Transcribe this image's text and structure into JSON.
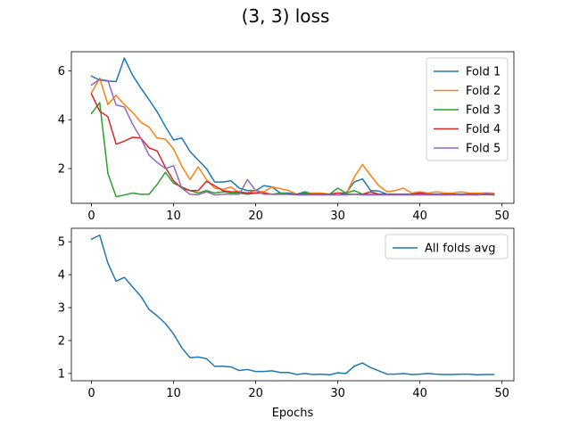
{
  "figure": {
    "title": "(3, 3) loss"
  },
  "chart_data": [
    {
      "type": "line",
      "xlim": [
        -2.45,
        51.45
      ],
      "ylim": [
        0.58,
        6.78
      ],
      "xticks": [
        0,
        10,
        20,
        30,
        40,
        50
      ],
      "yticks": [
        2,
        4,
        6
      ],
      "xlabel": "",
      "ylabel": "",
      "grid": false,
      "legend": "top-right",
      "series": [
        {
          "name": "Fold 1",
          "color": "#1f77b4",
          "x": [
            0,
            1,
            2,
            3,
            4,
            5,
            6,
            7,
            8,
            9,
            10,
            11,
            12,
            13,
            14,
            15,
            16,
            17,
            18,
            19,
            20,
            21,
            22,
            23,
            24,
            25,
            26,
            27,
            28,
            29,
            30,
            31,
            32,
            33,
            34,
            35,
            36,
            37,
            38,
            39,
            40,
            41,
            42,
            43,
            44,
            45,
            46,
            47,
            48,
            49
          ],
          "y": [
            5.78,
            5.62,
            5.58,
            5.56,
            6.52,
            5.82,
            5.3,
            4.82,
            4.32,
            3.72,
            3.17,
            3.25,
            2.7,
            2.35,
            2.0,
            1.45,
            1.45,
            1.5,
            1.2,
            1.1,
            1.1,
            1.3,
            1.25,
            1.0,
            1.0,
            0.95,
            1.05,
            0.95,
            0.95,
            0.95,
            1.0,
            1.0,
            1.45,
            1.58,
            1.1,
            1.08,
            0.95,
            0.95,
            0.95,
            0.95,
            0.95,
            0.95,
            0.95,
            0.92,
            0.95,
            0.92,
            0.95,
            0.92,
            0.95,
            0.92
          ]
        },
        {
          "name": "Fold 2",
          "color": "#ff7f0e",
          "x": [
            0,
            1,
            2,
            3,
            4,
            5,
            6,
            7,
            8,
            9,
            10,
            11,
            12,
            13,
            14,
            15,
            16,
            17,
            18,
            19,
            20,
            21,
            22,
            23,
            24,
            25,
            26,
            27,
            28,
            29,
            30,
            31,
            32,
            33,
            34,
            35,
            36,
            37,
            38,
            39,
            40,
            41,
            42,
            43,
            44,
            45,
            46,
            47,
            48,
            49
          ],
          "y": [
            5.1,
            5.7,
            4.62,
            5.0,
            4.62,
            4.3,
            3.9,
            3.7,
            3.25,
            3.2,
            2.8,
            2.1,
            1.55,
            2.07,
            1.55,
            1.2,
            1.15,
            1.25,
            1.0,
            1.0,
            1.1,
            1.05,
            1.25,
            1.18,
            1.1,
            0.95,
            1.0,
            1.0,
            1.0,
            0.95,
            1.0,
            0.95,
            1.65,
            2.17,
            1.72,
            1.3,
            1.05,
            1.1,
            1.2,
            1.0,
            1.05,
            1.0,
            1.05,
            1.0,
            1.0,
            1.05,
            1.0,
            1.0,
            1.0,
            1.0
          ]
        },
        {
          "name": "Fold 3",
          "color": "#2ca02c",
          "x": [
            0,
            1,
            2,
            3,
            4,
            5,
            6,
            7,
            8,
            9,
            10,
            11,
            12,
            13,
            14,
            15,
            16,
            17,
            18,
            19,
            20,
            21,
            22,
            23,
            24,
            25,
            26,
            27,
            28,
            29,
            30,
            31,
            32,
            33,
            34,
            35,
            36,
            37,
            38,
            39,
            40,
            41,
            42,
            43,
            44,
            45,
            46,
            47,
            48,
            49
          ],
          "y": [
            4.25,
            4.7,
            1.8,
            0.85,
            0.92,
            1.0,
            0.95,
            0.95,
            1.35,
            1.85,
            1.4,
            1.25,
            1.1,
            1.0,
            1.1,
            1.0,
            1.05,
            1.0,
            1.0,
            0.95,
            1.0,
            1.0,
            0.95,
            1.0,
            0.95,
            0.95,
            1.0,
            0.95,
            0.95,
            0.95,
            1.2,
            1.0,
            1.1,
            0.95,
            0.95,
            0.95,
            0.95,
            0.95,
            0.95,
            0.95,
            0.95,
            0.95,
            0.95,
            0.95,
            0.95,
            0.95,
            0.95,
            0.95,
            0.95,
            0.95
          ]
        },
        {
          "name": "Fold 4",
          "color": "#d62728",
          "x": [
            0,
            1,
            2,
            3,
            4,
            5,
            6,
            7,
            8,
            9,
            10,
            11,
            12,
            13,
            14,
            15,
            16,
            17,
            18,
            19,
            20,
            21,
            22,
            23,
            24,
            25,
            26,
            27,
            28,
            29,
            30,
            31,
            32,
            33,
            34,
            35,
            36,
            37,
            38,
            39,
            40,
            41,
            42,
            43,
            44,
            45,
            46,
            47,
            48,
            49
          ],
          "y": [
            5.05,
            4.35,
            4.12,
            3.0,
            3.12,
            3.28,
            3.25,
            2.85,
            2.72,
            2.05,
            1.5,
            1.2,
            1.1,
            1.1,
            1.48,
            1.3,
            1.1,
            1.05,
            1.05,
            1.0,
            1.0,
            1.0,
            0.95,
            0.95,
            0.95,
            0.95,
            0.95,
            0.95,
            0.95,
            0.95,
            1.0,
            0.95,
            0.95,
            0.95,
            1.05,
            0.95,
            0.95,
            0.95,
            0.95,
            0.95,
            1.0,
            0.95,
            0.95,
            0.95,
            0.95,
            0.95,
            0.95,
            0.95,
            0.95,
            0.95
          ]
        },
        {
          "name": "Fold 5",
          "color": "#9467bd",
          "x": [
            0,
            1,
            2,
            3,
            4,
            5,
            6,
            7,
            8,
            9,
            10,
            11,
            12,
            13,
            14,
            15,
            16,
            17,
            18,
            19,
            20,
            21,
            22,
            23,
            24,
            25,
            26,
            27,
            28,
            29,
            30,
            31,
            32,
            33,
            34,
            35,
            36,
            37,
            38,
            39,
            40,
            41,
            42,
            43,
            44,
            45,
            46,
            47,
            48,
            49
          ],
          "y": [
            5.42,
            5.65,
            5.6,
            4.6,
            4.52,
            3.82,
            3.25,
            2.55,
            2.25,
            2.0,
            2.12,
            1.2,
            0.95,
            0.93,
            1.05,
            0.92,
            0.95,
            0.95,
            0.95,
            1.55,
            1.1,
            0.95,
            0.95,
            0.95,
            0.95,
            0.92,
            0.92,
            0.92,
            0.92,
            0.92,
            0.92,
            0.92,
            0.95,
            0.92,
            0.92,
            0.92,
            0.92,
            0.92,
            0.92,
            0.92,
            0.92,
            0.92,
            0.92,
            0.92,
            0.92,
            0.92,
            0.92,
            0.92,
            1.0,
            0.95
          ]
        }
      ]
    },
    {
      "type": "line",
      "xlim": [
        -2.45,
        51.45
      ],
      "ylim": [
        0.78,
        5.41
      ],
      "xticks": [
        0,
        10,
        20,
        30,
        40,
        50
      ],
      "yticks": [
        1,
        2,
        3,
        4,
        5
      ],
      "xlabel": "Epochs",
      "ylabel": "",
      "grid": false,
      "legend": "top-right",
      "series": [
        {
          "name": "All folds avg",
          "color": "#1f77b4",
          "x": [
            0,
            1,
            2,
            3,
            4,
            5,
            6,
            7,
            8,
            9,
            10,
            11,
            12,
            13,
            14,
            15,
            16,
            17,
            18,
            19,
            20,
            21,
            22,
            23,
            24,
            25,
            26,
            27,
            28,
            29,
            30,
            31,
            32,
            33,
            34,
            35,
            36,
            37,
            38,
            39,
            40,
            41,
            42,
            43,
            44,
            45,
            46,
            47,
            48,
            49
          ],
          "y": [
            5.08,
            5.2,
            4.35,
            3.8,
            3.92,
            3.63,
            3.35,
            2.95,
            2.75,
            2.52,
            2.2,
            1.78,
            1.48,
            1.5,
            1.45,
            1.22,
            1.22,
            1.2,
            1.09,
            1.12,
            1.06,
            1.06,
            1.08,
            1.03,
            1.03,
            0.97,
            1.0,
            0.97,
            0.98,
            0.96,
            1.02,
            1.0,
            1.22,
            1.32,
            1.18,
            1.08,
            0.98,
            0.98,
            1.0,
            0.97,
            0.98,
            1.0,
            0.98,
            0.97,
            0.97,
            0.98,
            0.98,
            0.96,
            0.97,
            0.97
          ]
        }
      ]
    }
  ]
}
